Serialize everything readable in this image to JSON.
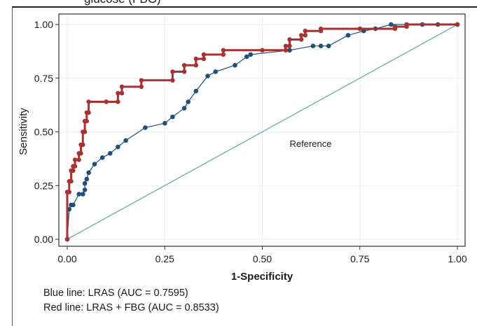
{
  "page": {
    "clipped_title": "glucose (FBG)",
    "captions": [
      "Blue line: LRAS (AUC = 0.7595)",
      "Red line: LRAS + FBG (AUC = 0.8533)"
    ]
  },
  "colors": {
    "lras": "#1f4e79",
    "lras_fbg": "#a83232",
    "reference": "#6aaea8",
    "grid": "#e4eef4",
    "frame": "#333333"
  },
  "chart_data": {
    "type": "line",
    "title": "",
    "xlabel": "1-Specificity",
    "ylabel": "Sensitivity",
    "xlim": [
      0,
      1
    ],
    "ylim": [
      0,
      1
    ],
    "xticks": [
      "0.00",
      "0.25",
      "0.50",
      "0.75",
      "1.00"
    ],
    "yticks": [
      "0.00",
      "0.25",
      "0.50",
      "0.75",
      "1.00"
    ],
    "grid": true,
    "annotations": [
      {
        "text": "Reference",
        "x": 0.57,
        "y": 0.43
      }
    ],
    "series": [
      {
        "key": "reference",
        "style": "line",
        "x": [
          0,
          1
        ],
        "y": [
          0,
          1
        ]
      },
      {
        "key": "lras",
        "style": "line+markers",
        "x": [
          0.0,
          0.005,
          0.01,
          0.015,
          0.03,
          0.04,
          0.045,
          0.045,
          0.05,
          0.055,
          0.07,
          0.09,
          0.11,
          0.13,
          0.15,
          0.2,
          0.25,
          0.27,
          0.3,
          0.31,
          0.33,
          0.36,
          0.38,
          0.43,
          0.46,
          0.47,
          0.57,
          0.63,
          0.65,
          0.67,
          0.72,
          0.76,
          0.79,
          0.83,
          0.87,
          0.91,
          0.95,
          1.0
        ],
        "y": [
          0.0,
          0.14,
          0.16,
          0.16,
          0.21,
          0.21,
          0.23,
          0.26,
          0.28,
          0.31,
          0.35,
          0.38,
          0.4,
          0.43,
          0.46,
          0.52,
          0.54,
          0.57,
          0.61,
          0.64,
          0.69,
          0.76,
          0.78,
          0.81,
          0.85,
          0.86,
          0.88,
          0.9,
          0.9,
          0.9,
          0.95,
          0.97,
          0.98,
          1.0,
          1.0,
          1.0,
          1.0,
          1.0
        ]
      },
      {
        "key": "lras_fbg",
        "style": "step+markers",
        "x": [
          0.0,
          0.0,
          0.005,
          0.005,
          0.01,
          0.01,
          0.015,
          0.015,
          0.02,
          0.02,
          0.03,
          0.03,
          0.035,
          0.035,
          0.04,
          0.04,
          0.045,
          0.045,
          0.05,
          0.05,
          0.055,
          0.055,
          0.1,
          0.1,
          0.13,
          0.13,
          0.14,
          0.14,
          0.19,
          0.19,
          0.27,
          0.27,
          0.3,
          0.3,
          0.33,
          0.33,
          0.35,
          0.35,
          0.4,
          0.4,
          0.5,
          0.5,
          0.56,
          0.56,
          0.57,
          0.57,
          0.6,
          0.6,
          0.61,
          0.61,
          0.65,
          0.65,
          0.75,
          0.75,
          0.84,
          0.84,
          0.87,
          0.87,
          1.0
        ],
        "y": [
          0.0,
          0.22,
          0.22,
          0.27,
          0.27,
          0.32,
          0.32,
          0.34,
          0.34,
          0.37,
          0.37,
          0.4,
          0.4,
          0.44,
          0.44,
          0.5,
          0.5,
          0.55,
          0.55,
          0.59,
          0.59,
          0.64,
          0.64,
          0.64,
          0.64,
          0.68,
          0.68,
          0.71,
          0.71,
          0.74,
          0.74,
          0.78,
          0.78,
          0.81,
          0.81,
          0.84,
          0.84,
          0.86,
          0.86,
          0.88,
          0.88,
          0.88,
          0.88,
          0.9,
          0.9,
          0.93,
          0.93,
          0.95,
          0.95,
          0.97,
          0.97,
          0.98,
          0.98,
          0.98,
          0.98,
          0.99,
          0.99,
          1.0,
          1.0
        ]
      }
    ]
  }
}
